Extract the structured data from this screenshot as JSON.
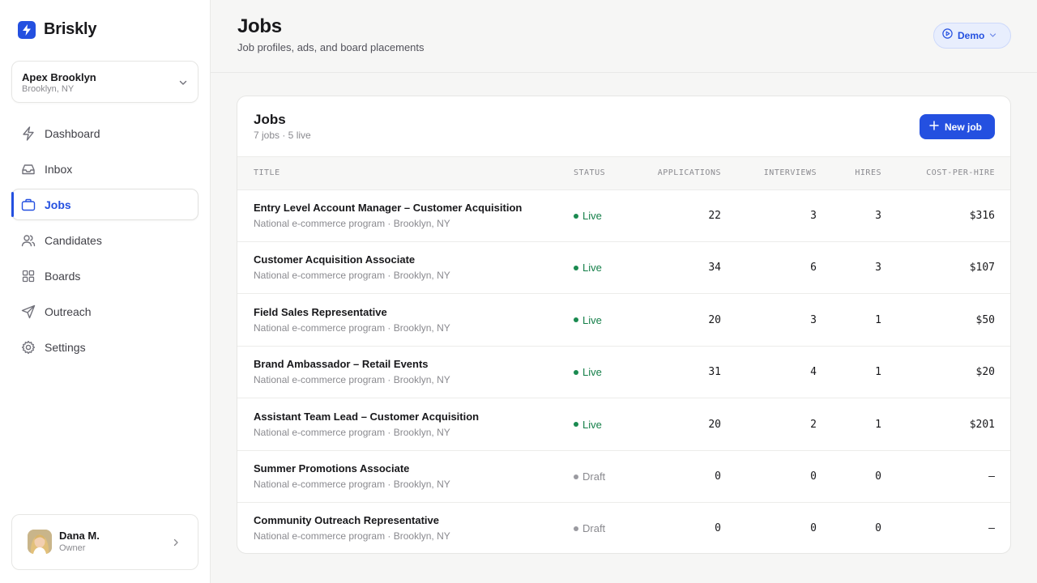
{
  "brand": {
    "name": "Briskly"
  },
  "org": {
    "name": "Apex Brooklyn",
    "location": "Brooklyn, NY"
  },
  "nav": [
    {
      "label": "Dashboard",
      "icon": "lightning-icon",
      "active": false
    },
    {
      "label": "Inbox",
      "icon": "inbox-icon",
      "active": false
    },
    {
      "label": "Jobs",
      "icon": "briefcase-icon",
      "active": true
    },
    {
      "label": "Candidates",
      "icon": "users-icon",
      "active": false
    },
    {
      "label": "Boards",
      "icon": "grid-icon",
      "active": false
    },
    {
      "label": "Outreach",
      "icon": "send-icon",
      "active": false
    },
    {
      "label": "Settings",
      "icon": "gear-icon",
      "active": false
    }
  ],
  "user": {
    "name": "Dana M.",
    "role": "Owner"
  },
  "header": {
    "title": "Jobs",
    "subtitle": "Job profiles, ads, and board placements",
    "demo_label": "Demo"
  },
  "card": {
    "title": "Jobs",
    "subtitle": "7 jobs · 5 live",
    "new_button": "New job",
    "columns": [
      "TITLE",
      "STATUS",
      "APPLICATIONS",
      "INTERVIEWS",
      "HIRES",
      "COST-PER-HIRE"
    ],
    "rows": [
      {
        "title": "Entry Level Account Manager – Customer Acquisition",
        "subtitle": "National e-commerce program · Brooklyn, NY",
        "status": "Live",
        "applications": "22",
        "interviews": "3",
        "hires": "3",
        "cph": "$316"
      },
      {
        "title": "Customer Acquisition Associate",
        "subtitle": "National e-commerce program · Brooklyn, NY",
        "status": "Live",
        "applications": "34",
        "interviews": "6",
        "hires": "3",
        "cph": "$107"
      },
      {
        "title": "Field Sales Representative",
        "subtitle": "National e-commerce program · Brooklyn, NY",
        "status": "Live",
        "applications": "20",
        "interviews": "3",
        "hires": "1",
        "cph": "$50"
      },
      {
        "title": "Brand Ambassador – Retail Events",
        "subtitle": "National e-commerce program · Brooklyn, NY",
        "status": "Live",
        "applications": "31",
        "interviews": "4",
        "hires": "1",
        "cph": "$20"
      },
      {
        "title": "Assistant Team Lead – Customer Acquisition",
        "subtitle": "National e-commerce program · Brooklyn, NY",
        "status": "Live",
        "applications": "20",
        "interviews": "2",
        "hires": "1",
        "cph": "$201"
      },
      {
        "title": "Summer Promotions Associate",
        "subtitle": "National e-commerce program · Brooklyn, NY",
        "status": "Draft",
        "applications": "0",
        "interviews": "0",
        "hires": "0",
        "cph": "–"
      },
      {
        "title": "Community Outreach Representative",
        "subtitle": "National e-commerce program · Brooklyn, NY",
        "status": "Draft",
        "applications": "0",
        "interviews": "0",
        "hires": "0",
        "cph": "–"
      }
    ]
  },
  "colors": {
    "accent": "#2450e0",
    "live": "#157f49",
    "draft": "#8a8a8f"
  }
}
